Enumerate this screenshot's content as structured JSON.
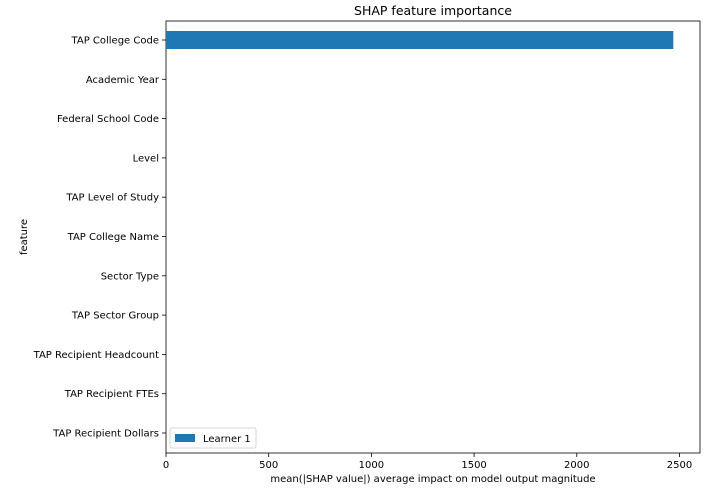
{
  "chart_data": {
    "type": "bar",
    "orientation": "horizontal",
    "title": "SHAP feature importance",
    "xlabel": "mean(|SHAP value|) average impact on model output magnitude",
    "ylabel": "feature",
    "xlim": [
      0,
      2600
    ],
    "xticks": [
      0,
      500,
      1000,
      1500,
      2000,
      2500
    ],
    "categories": [
      "TAP College Code",
      "Academic Year",
      "Federal School Code",
      "Level",
      "TAP Level of Study",
      "TAP College Name",
      "Sector Type",
      "TAP Sector Group",
      "TAP Recipient Headcount",
      "TAP Recipient FTEs",
      "TAP Recipient Dollars"
    ],
    "series": [
      {
        "name": "Learner 1",
        "color": "#1f77b4",
        "values": [
          2470,
          0,
          0,
          0,
          0,
          0,
          0,
          0,
          0,
          0,
          0
        ]
      }
    ],
    "legend_position": "lower-left",
    "grid": false
  }
}
